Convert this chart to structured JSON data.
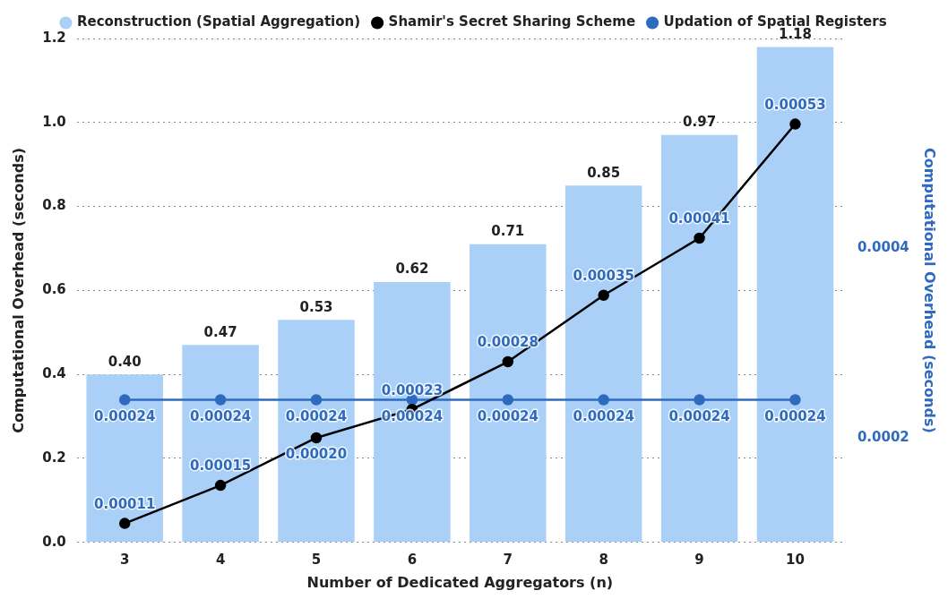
{
  "chart_data": {
    "type": "bar",
    "xlabel": "Number of Dedicated Aggregators (n)",
    "ylabel": "Computational Overhead (seconds)",
    "y2label": "Computational Overhead (seconds)",
    "categories": [
      "3",
      "4",
      "5",
      "6",
      "7",
      "8",
      "9",
      "10"
    ],
    "series": [
      {
        "name": "Reconstruction (Spatial Aggregation)",
        "color": "#abd0f8",
        "values": [
          0.4,
          0.47,
          0.53,
          0.62,
          0.71,
          0.85,
          0.97,
          1.18
        ],
        "value_labels": [
          "0.40",
          "0.47",
          "0.53",
          "0.62",
          "0.71",
          "0.85",
          "0.97",
          "1.18"
        ]
      },
      {
        "name": "Shamir's Secret Sharing Scheme",
        "type": "line",
        "axis": "y2",
        "color": "#000000",
        "values": [
          0.00011,
          0.00015,
          0.0002,
          0.00023,
          0.00028,
          0.00035,
          0.00041,
          0.00053
        ],
        "value_labels": [
          "0.00011",
          "0.00015",
          "0.00020",
          "0.00023",
          "0.00028",
          "0.00035",
          "0.00041",
          "0.00053"
        ]
      },
      {
        "name": "Updation of Spatial Registers",
        "type": "line",
        "axis": "y2",
        "color": "#2e6bbf",
        "values": [
          0.00024,
          0.00024,
          0.00024,
          0.00024,
          0.00024,
          0.00024,
          0.00024,
          0.00024
        ],
        "value_labels": [
          "0.00024",
          "0.00024",
          "0.00024",
          "0.00024",
          "0.00024",
          "0.00024",
          "0.00024",
          "0.00024"
        ]
      }
    ],
    "ylim": [
      0,
      1.2
    ],
    "yticks": [
      {
        "value": 0,
        "label": "0.0"
      },
      {
        "value": 0.2,
        "label": "0.2"
      },
      {
        "value": 0.4,
        "label": "0.4"
      },
      {
        "value": 0.6,
        "label": "0.6"
      },
      {
        "value": 0.8,
        "label": "0.8"
      },
      {
        "value": 1.0,
        "label": "1.0"
      },
      {
        "value": 1.2,
        "label": "1.2"
      }
    ],
    "y2lim": [
      9e-05,
      0.00062
    ],
    "y2ticks": [
      0.0002,
      0.0004
    ],
    "grid": "y",
    "legend": "top",
    "marker": "circle",
    "line_style": "solid"
  }
}
